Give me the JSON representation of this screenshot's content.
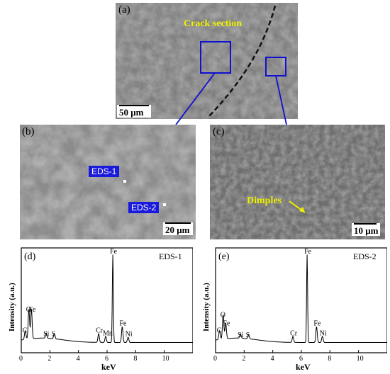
{
  "panel_a": {
    "label": "(a)",
    "annotation": "Crack section",
    "scale": "50 μm"
  },
  "panel_b": {
    "label": "(b)",
    "scale": "20 μm",
    "markers": [
      "EDS-1",
      "EDS-2"
    ]
  },
  "panel_c": {
    "label": "(c)",
    "scale": "10 μm",
    "annotation": "Dimples"
  },
  "chart_data": [
    {
      "type": "line",
      "panel": "(d)",
      "title": "EDS-1",
      "xlabel": "keV",
      "ylabel": "Intensity (a.u.)",
      "xlim": [
        0,
        12
      ],
      "xticks": [
        "0",
        "2",
        "4",
        "6",
        "8",
        "10"
      ],
      "peaks": [
        {
          "el": "C",
          "x": 0.28,
          "h": 0.1
        },
        {
          "el": "O",
          "x": 0.53,
          "h": 0.34
        },
        {
          "el": "Fe",
          "x": 0.71,
          "h": 0.34
        },
        {
          "el": "Si",
          "x": 1.74,
          "h": 0.06
        },
        {
          "el": "S",
          "x": 2.31,
          "h": 0.06
        },
        {
          "el": "Cr",
          "x": 5.41,
          "h": 0.1
        },
        {
          "el": "Mn",
          "x": 5.9,
          "h": 0.07
        },
        {
          "el": "Fe",
          "x": 6.4,
          "h": 1.0
        },
        {
          "el": "Fe",
          "x": 7.06,
          "h": 0.18
        },
        {
          "el": "Ni",
          "x": 7.47,
          "h": 0.06
        }
      ],
      "peak_labels": [
        "C",
        "O",
        "Fe",
        "Si",
        "S",
        "Cr",
        "Mn",
        "Fe",
        "Fe",
        "Ni"
      ]
    },
    {
      "type": "line",
      "panel": "(e)",
      "title": "EDS-2",
      "xlabel": "keV",
      "ylabel": "Intensity (a.u.)",
      "xlim": [
        0,
        12
      ],
      "xticks": [
        "0",
        "2",
        "4",
        "6",
        "8",
        "10"
      ],
      "peaks": [
        {
          "el": "C",
          "x": 0.28,
          "h": 0.1
        },
        {
          "el": "O",
          "x": 0.53,
          "h": 0.28
        },
        {
          "el": "Fe",
          "x": 0.71,
          "h": 0.18
        },
        {
          "el": "Si",
          "x": 1.74,
          "h": 0.05
        },
        {
          "el": "S",
          "x": 2.31,
          "h": 0.05
        },
        {
          "el": "Cr",
          "x": 5.41,
          "h": 0.07
        },
        {
          "el": "Fe",
          "x": 6.4,
          "h": 1.0
        },
        {
          "el": "Fe",
          "x": 7.06,
          "h": 0.18
        },
        {
          "el": "Ni",
          "x": 7.47,
          "h": 0.07
        }
      ],
      "peak_labels": [
        "C",
        "O",
        "Fe",
        "Si",
        "S",
        "Cr",
        "Fe",
        "Fe",
        "Ni"
      ]
    }
  ]
}
